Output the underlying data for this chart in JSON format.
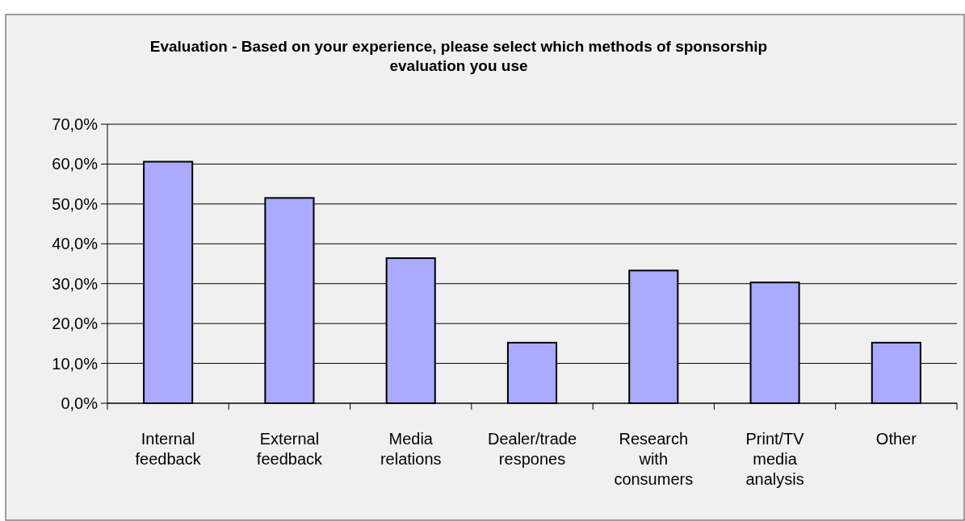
{
  "chart_data": {
    "type": "bar",
    "title": "Evaluation - Based on your experience, please select which methods of sponsorship evaluation you use",
    "categories": [
      "Internal feedback",
      "External feedback",
      "Media relations",
      "Dealer/trade respones",
      "Research with consumers",
      "Print/TV media analysis",
      "Other"
    ],
    "values": [
      60.6,
      51.5,
      36.4,
      15.2,
      33.3,
      30.3,
      15.2
    ],
    "color": "#aaaaff",
    "ylim": [
      0,
      70
    ],
    "yticks": [
      {
        "value": 0,
        "label": "0,0%"
      },
      {
        "value": 10,
        "label": "10,0%"
      },
      {
        "value": 20,
        "label": "20,0%"
      },
      {
        "value": 30,
        "label": "30,0%"
      },
      {
        "value": 40,
        "label": "40,0%"
      },
      {
        "value": 50,
        "label": "50,0%"
      },
      {
        "value": 60,
        "label": "60,0%"
      },
      {
        "value": 70,
        "label": "70,0%"
      }
    ],
    "grid": "y"
  }
}
